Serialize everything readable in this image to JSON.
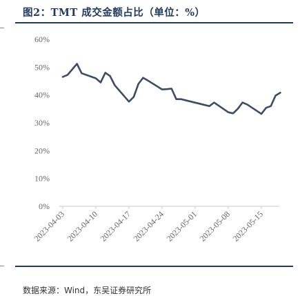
{
  "header": {
    "title": "图2：TMT 成交金额占比（单位：%）"
  },
  "footer": {
    "source": "数据来源：Wind，东吴证券研究所"
  },
  "colors": {
    "line": "#3b4d66",
    "rule": "#1f3a5c",
    "tick_text": "#666666"
  },
  "chart_data": {
    "type": "line",
    "title": "TMT 成交金额占比（单位：%）",
    "xlabel": "",
    "ylabel": "",
    "ylim": [
      0,
      60
    ],
    "yticks": [
      0,
      10,
      20,
      30,
      40,
      50,
      60
    ],
    "ytick_labels": [
      "0%",
      "10%",
      "20%",
      "30%",
      "40%",
      "50%",
      "60%"
    ],
    "xtick_labels": [
      "2023-04-03",
      "2023-04-10",
      "2023-04-17",
      "2023-04-24",
      "2023-05-01",
      "2023-05-08",
      "2023-05-15"
    ],
    "grid": false,
    "series": [
      {
        "x": [
          "2023-04-03",
          "2023-04-04",
          "2023-04-06",
          "2023-04-07",
          "2023-04-10",
          "2023-04-11",
          "2023-04-12",
          "2023-04-13",
          "2023-04-14",
          "2023-04-17",
          "2023-04-18",
          "2023-04-19",
          "2023-04-20",
          "2023-04-21",
          "2023-04-24",
          "2023-04-25",
          "2023-04-26",
          "2023-04-27",
          "2023-04-28",
          "2023-05-04",
          "2023-05-05",
          "2023-05-08",
          "2023-05-09",
          "2023-05-10",
          "2023-05-11",
          "2023-05-12",
          "2023-05-15",
          "2023-05-16",
          "2023-05-17",
          "2023-05-18",
          "2023-05-19"
        ],
        "values": [
          46.5,
          47.2,
          51.2,
          47.8,
          46.0,
          44.5,
          48.0,
          46.8,
          43.5,
          37.6,
          39.3,
          44.0,
          46.2,
          45.2,
          42.0,
          42.1,
          42.3,
          38.5,
          38.5,
          36.0,
          37.3,
          33.8,
          33.4,
          35.0,
          37.3,
          36.6,
          33.2,
          35.4,
          36.0,
          39.8,
          40.8
        ]
      }
    ]
  }
}
